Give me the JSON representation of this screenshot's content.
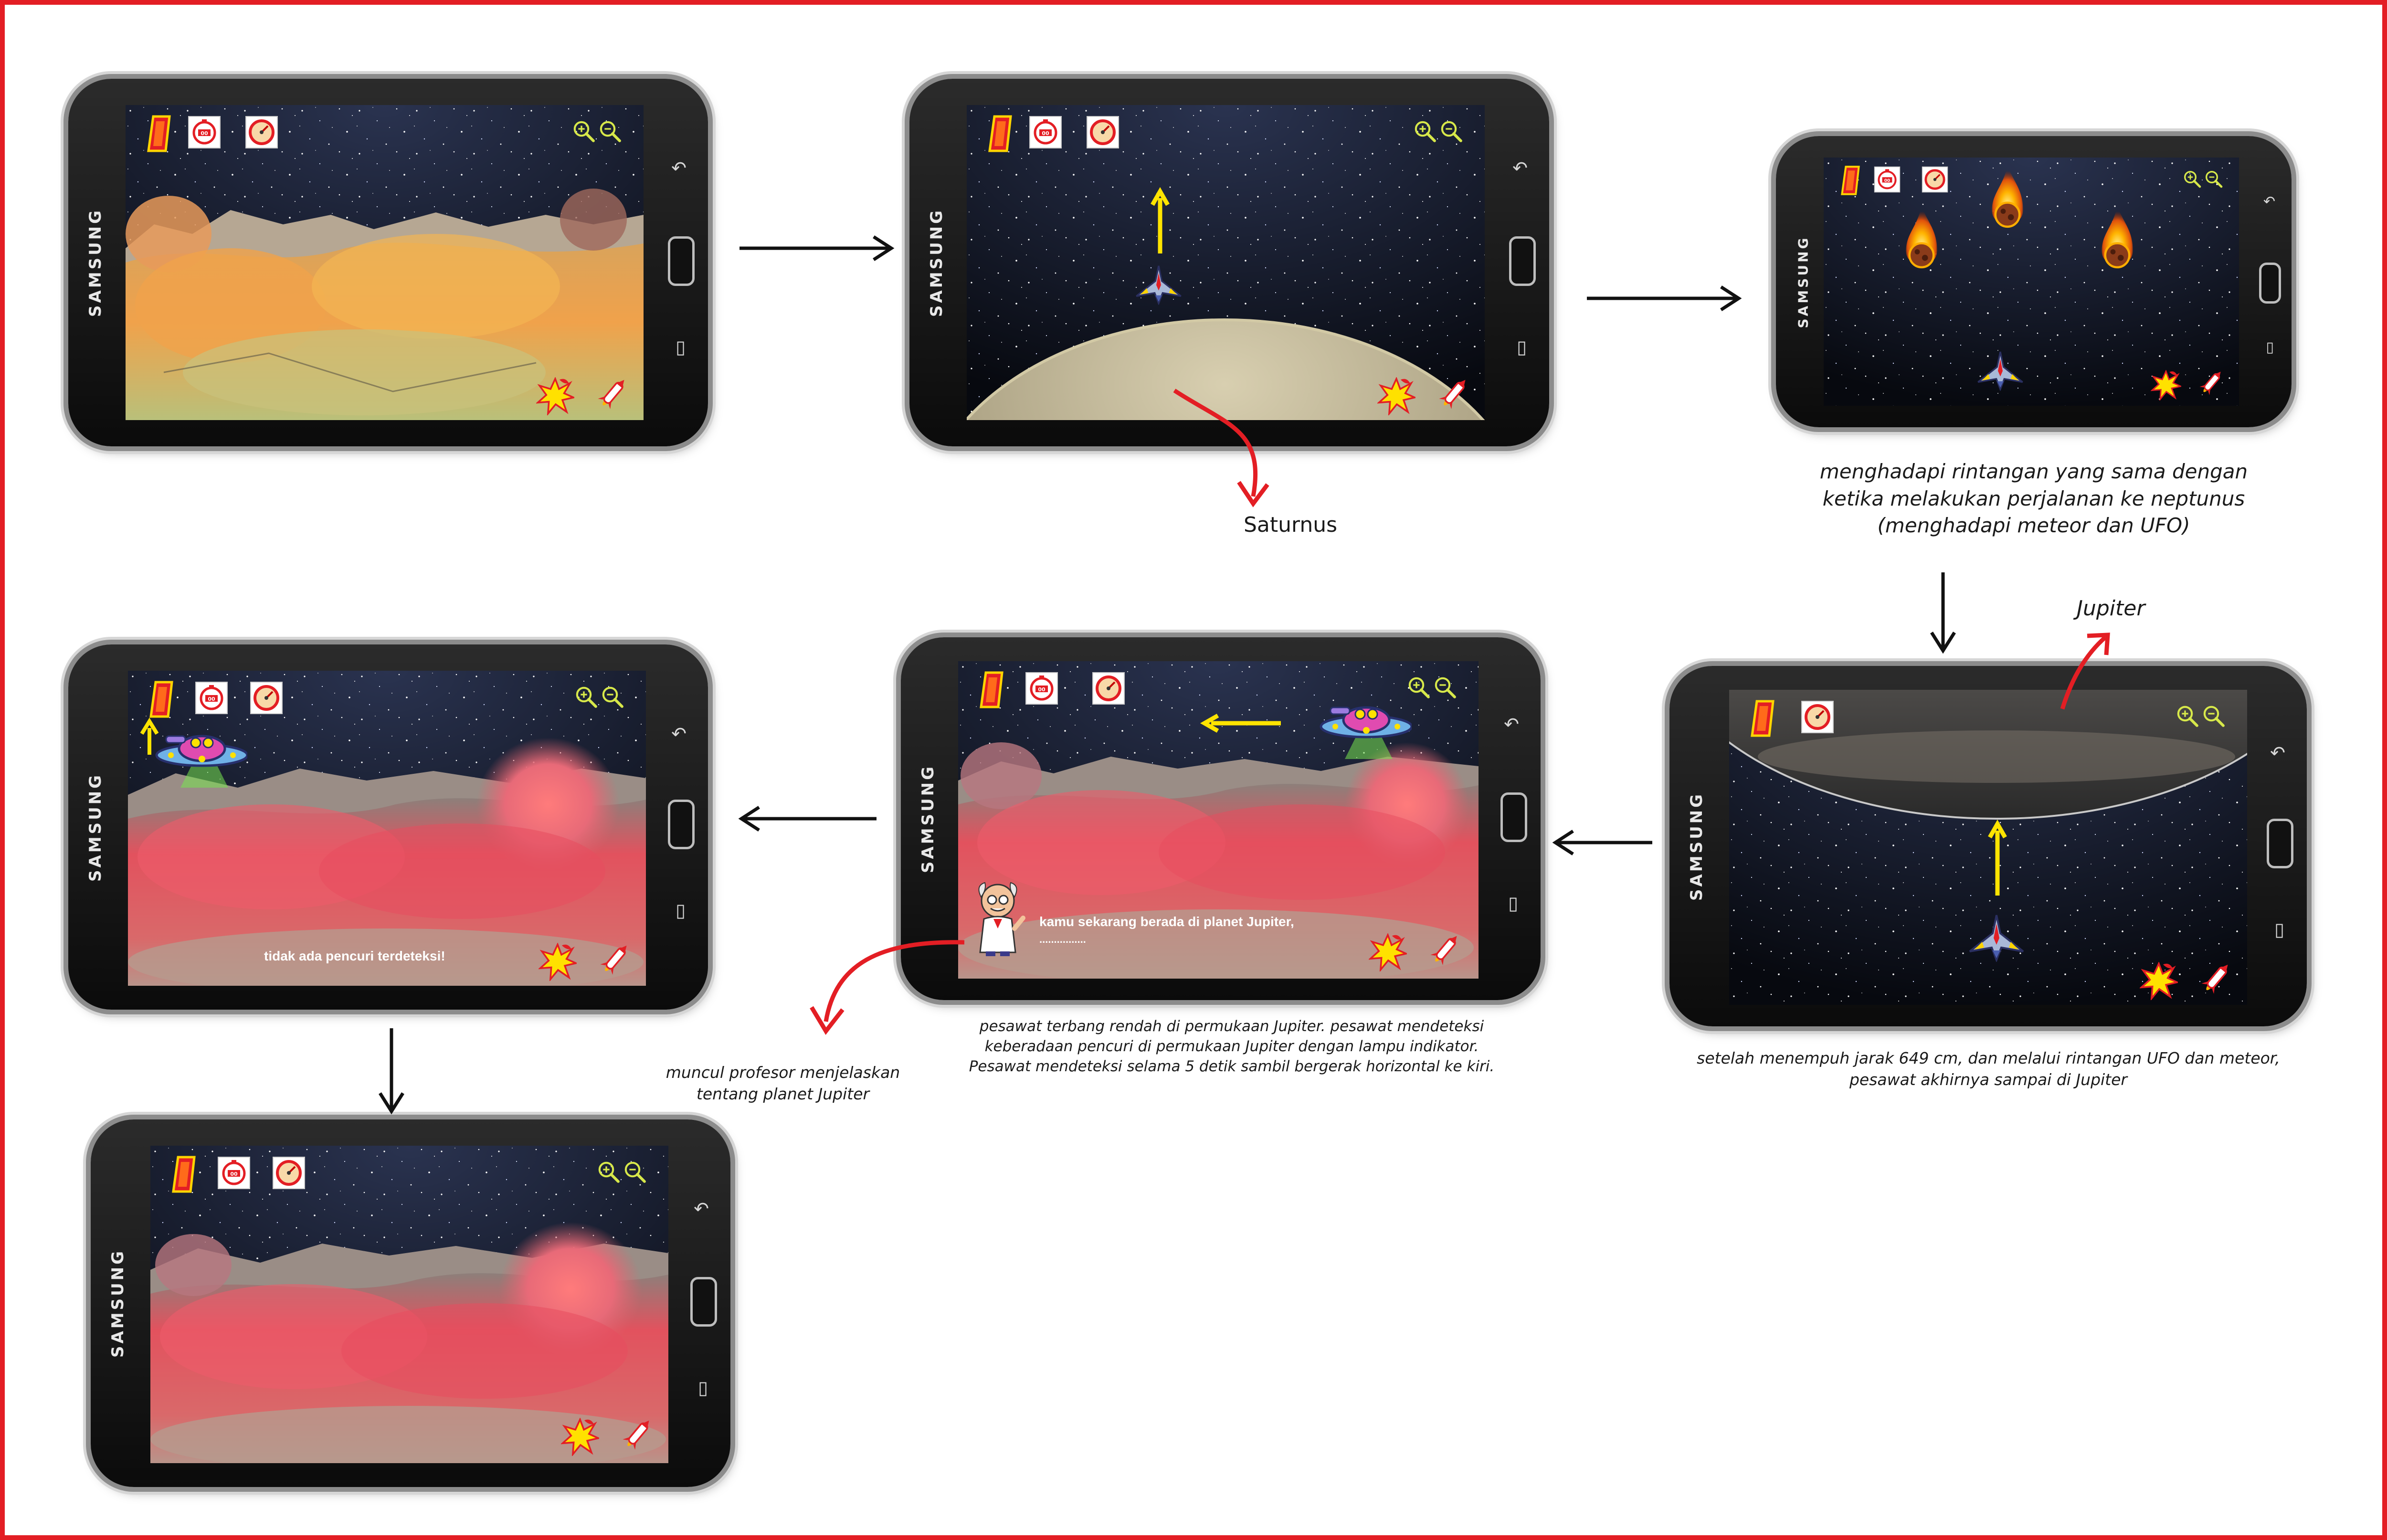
{
  "phone_brand": "SAMSUNG",
  "colors": {
    "frame": "#e31e24",
    "flow_arrow": "#111111",
    "game_arrow": "#ffe400",
    "callout": "#e31e24"
  },
  "screens": [
    {
      "id": 1,
      "scene": "orange-surface"
    },
    {
      "id": 2,
      "scene": "saturn-orbit"
    },
    {
      "id": 3,
      "scene": "meteors"
    },
    {
      "id": 4,
      "scene": "jupiter-orbit"
    },
    {
      "id": 5,
      "scene": "jupiter-surface-professor",
      "dialog_line1": "kamu sekarang berada di planet Jupiter,",
      "dialog_line2": "................"
    },
    {
      "id": 6,
      "scene": "jupiter-surface-detect",
      "message": "tidak ada pencuri terdeteksi!"
    },
    {
      "id": 7,
      "scene": "jupiter-surface-empty"
    }
  ],
  "labels": {
    "saturnus": "Saturnus",
    "jupiter": "Jupiter"
  },
  "captions": {
    "meteor": [
      "menghadapi rintangan yang sama dengan",
      "ketika melakukan perjalanan ke neptunus",
      "(menghadapi meteor dan UFO)"
    ],
    "arrival": [
      "setelah menempuh jarak 649 cm, dan melalui rintangan UFO dan meteor,",
      "pesawat akhirnya sampai di Jupiter"
    ],
    "detect": [
      "pesawat terbang rendah di permukaan Jupiter. pesawat mendeteksi",
      "keberadaan pencuri di permukaan Jupiter dengan lampu indikator.",
      "Pesawat mendeteksi selama 5 detik sambil bergerak horizontal ke kiri."
    ],
    "professor": [
      "muncul profesor menjelaskan",
      "tentang planet Jupiter"
    ]
  },
  "icons": [
    "fuel-gauge-icon",
    "bomb-counter-icon",
    "speedometer-icon",
    "zoom-in-icon",
    "zoom-out-icon",
    "explosion-button-icon",
    "missile-button-icon",
    "back-key-icon",
    "menu-key-icon"
  ]
}
